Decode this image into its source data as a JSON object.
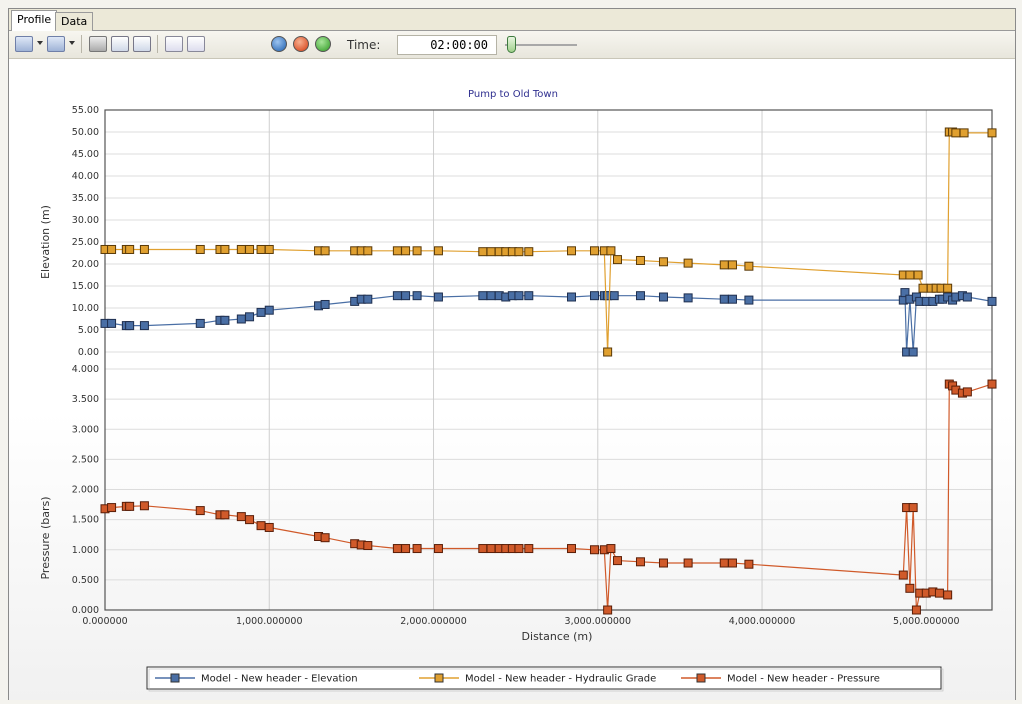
{
  "tabs": [
    {
      "label": "Profile",
      "active": true
    },
    {
      "label": "Data",
      "active": false
    }
  ],
  "toolbar": {
    "time_label": "Time:",
    "time_value": "02:00:00",
    "icons": [
      "chart-type-icon",
      "series-icon",
      "print-icon",
      "print-preview-icon",
      "copy-icon",
      "zoom-extents-icon",
      "zoom-window-icon",
      "play-icon",
      "stop-icon",
      "forward-icon"
    ],
    "slider_position": 0.08
  },
  "chart_data": [
    {
      "type": "line",
      "title": "Pump to Old Town",
      "xlabel": "Distance (m)",
      "ylabel": "Elevation (m)",
      "xlim": [
        0,
        5400
      ],
      "ylim": [
        0,
        55
      ],
      "x_ticks": [
        "0.000000",
        "1,000.000000",
        "2,000.000000",
        "3,000.000000",
        "4,000.000000",
        "5,000.000000"
      ],
      "y_ticks": [
        "0.00",
        "5.00",
        "10.00",
        "15.00",
        "20.00",
        "25.00",
        "30.00",
        "35.00",
        "40.00",
        "45.00",
        "50.00",
        "55.00"
      ],
      "grid": true,
      "series": [
        {
          "name": "Model - New header - Elevation",
          "color": "#4a6fa5",
          "points": [
            [
              0,
              6.5
            ],
            [
              40,
              6.5
            ],
            [
              130,
              6.0
            ],
            [
              150,
              6.0
            ],
            [
              240,
              6.0
            ],
            [
              580,
              6.5
            ],
            [
              700,
              7.2
            ],
            [
              730,
              7.2
            ],
            [
              830,
              7.5
            ],
            [
              880,
              8.0
            ],
            [
              950,
              9.0
            ],
            [
              1000,
              9.5
            ],
            [
              1300,
              10.5
            ],
            [
              1340,
              10.8
            ],
            [
              1520,
              11.5
            ],
            [
              1560,
              12.0
            ],
            [
              1600,
              12.0
            ],
            [
              1780,
              12.8
            ],
            [
              1830,
              12.8
            ],
            [
              1900,
              12.8
            ],
            [
              2030,
              12.5
            ],
            [
              2300,
              12.8
            ],
            [
              2350,
              12.8
            ],
            [
              2400,
              12.8
            ],
            [
              2440,
              12.5
            ],
            [
              2480,
              12.8
            ],
            [
              2520,
              12.8
            ],
            [
              2580,
              12.8
            ],
            [
              2840,
              12.5
            ],
            [
              2980,
              12.8
            ],
            [
              3040,
              12.8
            ],
            [
              3060,
              12.8
            ],
            [
              3100,
              12.8
            ],
            [
              3260,
              12.8
            ],
            [
              3400,
              12.5
            ],
            [
              3550,
              12.3
            ],
            [
              3770,
              12.0
            ],
            [
              3820,
              12.0
            ],
            [
              3920,
              11.8
            ],
            [
              4860,
              11.8
            ],
            [
              4870,
              13.5
            ],
            [
              4880,
              0.0
            ],
            [
              4900,
              12.0
            ],
            [
              4920,
              0.0
            ],
            [
              4940,
              12.5
            ],
            [
              4960,
              11.5
            ],
            [
              5000,
              11.5
            ],
            [
              5040,
              11.5
            ],
            [
              5080,
              12.0
            ],
            [
              5100,
              12.0
            ],
            [
              5130,
              12.5
            ],
            [
              5160,
              11.8
            ],
            [
              5180,
              12.5
            ],
            [
              5220,
              12.8
            ],
            [
              5250,
              12.5
            ],
            [
              5400,
              11.5
            ]
          ]
        },
        {
          "name": "Model - New header - Hydraulic Grade",
          "color": "#e0a030",
          "points": [
            [
              0,
              23.3
            ],
            [
              40,
              23.3
            ],
            [
              130,
              23.3
            ],
            [
              150,
              23.3
            ],
            [
              240,
              23.3
            ],
            [
              580,
              23.3
            ],
            [
              700,
              23.3
            ],
            [
              730,
              23.3
            ],
            [
              830,
              23.3
            ],
            [
              880,
              23.3
            ],
            [
              950,
              23.3
            ],
            [
              1000,
              23.3
            ],
            [
              1300,
              23.0
            ],
            [
              1340,
              23.0
            ],
            [
              1520,
              23.0
            ],
            [
              1560,
              23.0
            ],
            [
              1600,
              23.0
            ],
            [
              1780,
              23.0
            ],
            [
              1830,
              23.0
            ],
            [
              1900,
              23.0
            ],
            [
              2030,
              23.0
            ],
            [
              2300,
              22.8
            ],
            [
              2350,
              22.8
            ],
            [
              2400,
              22.8
            ],
            [
              2440,
              22.8
            ],
            [
              2480,
              22.8
            ],
            [
              2520,
              22.8
            ],
            [
              2580,
              22.8
            ],
            [
              2840,
              23.0
            ],
            [
              2980,
              23.0
            ],
            [
              3040,
              23.0
            ],
            [
              3060,
              0.0
            ],
            [
              3080,
              23.0
            ],
            [
              3120,
              21.0
            ],
            [
              3260,
              20.8
            ],
            [
              3400,
              20.5
            ],
            [
              3550,
              20.2
            ],
            [
              3770,
              19.8
            ],
            [
              3820,
              19.8
            ],
            [
              3920,
              19.5
            ],
            [
              4860,
              17.5
            ],
            [
              4900,
              17.5
            ],
            [
              4950,
              17.5
            ],
            [
              4980,
              14.5
            ],
            [
              5030,
              14.5
            ],
            [
              5060,
              14.5
            ],
            [
              5090,
              14.5
            ],
            [
              5130,
              14.5
            ],
            [
              5140,
              50.0
            ],
            [
              5160,
              50.0
            ],
            [
              5180,
              49.8
            ],
            [
              5230,
              49.8
            ],
            [
              5400,
              49.8
            ]
          ]
        }
      ]
    },
    {
      "type": "line",
      "title": "",
      "xlabel": "Distance (m)",
      "ylabel": "Pressure (bars)",
      "xlim": [
        0,
        5400
      ],
      "ylim": [
        0,
        4
      ],
      "y_ticks": [
        "0.000",
        "0.500",
        "1.000",
        "1.500",
        "2.000",
        "2.500",
        "3.000",
        "3.500",
        "4.000"
      ],
      "grid": true,
      "series": [
        {
          "name": "Model - New header - Pressure",
          "color": "#d05a2a",
          "points": [
            [
              0,
              1.68
            ],
            [
              40,
              1.7
            ],
            [
              130,
              1.72
            ],
            [
              150,
              1.72
            ],
            [
              240,
              1.73
            ],
            [
              580,
              1.65
            ],
            [
              700,
              1.58
            ],
            [
              730,
              1.58
            ],
            [
              830,
              1.55
            ],
            [
              880,
              1.5
            ],
            [
              950,
              1.4
            ],
            [
              1000,
              1.37
            ],
            [
              1300,
              1.22
            ],
            [
              1340,
              1.2
            ],
            [
              1520,
              1.1
            ],
            [
              1560,
              1.08
            ],
            [
              1600,
              1.07
            ],
            [
              1780,
              1.02
            ],
            [
              1830,
              1.02
            ],
            [
              1900,
              1.02
            ],
            [
              2030,
              1.02
            ],
            [
              2300,
              1.02
            ],
            [
              2350,
              1.02
            ],
            [
              2400,
              1.02
            ],
            [
              2440,
              1.02
            ],
            [
              2480,
              1.02
            ],
            [
              2520,
              1.02
            ],
            [
              2580,
              1.02
            ],
            [
              2840,
              1.02
            ],
            [
              2980,
              1.0
            ],
            [
              3040,
              1.0
            ],
            [
              3060,
              0.0
            ],
            [
              3080,
              1.02
            ],
            [
              3120,
              0.82
            ],
            [
              3260,
              0.8
            ],
            [
              3400,
              0.78
            ],
            [
              3550,
              0.78
            ],
            [
              3770,
              0.78
            ],
            [
              3820,
              0.78
            ],
            [
              3920,
              0.76
            ],
            [
              4860,
              0.58
            ],
            [
              4880,
              1.7
            ],
            [
              4900,
              0.36
            ],
            [
              4920,
              1.7
            ],
            [
              4940,
              0.0
            ],
            [
              4960,
              0.28
            ],
            [
              5000,
              0.28
            ],
            [
              5040,
              0.3
            ],
            [
              5080,
              0.28
            ],
            [
              5130,
              0.25
            ],
            [
              5140,
              3.75
            ],
            [
              5160,
              3.72
            ],
            [
              5180,
              3.65
            ],
            [
              5220,
              3.6
            ],
            [
              5250,
              3.62
            ],
            [
              5400,
              3.75
            ]
          ]
        }
      ]
    }
  ],
  "legend": {
    "placement": "bottom",
    "entries": [
      {
        "label": "Model - New header - Elevation",
        "color": "#4a6fa5"
      },
      {
        "label": "Model - New header - Hydraulic Grade",
        "color": "#e0a030"
      },
      {
        "label": "Model - New header - Pressure",
        "color": "#d05a2a"
      }
    ]
  }
}
